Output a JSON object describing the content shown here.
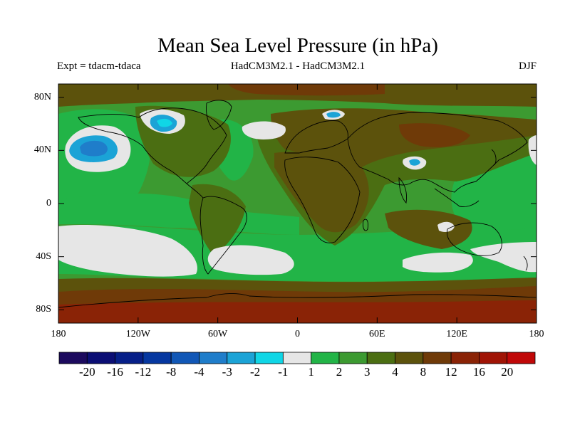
{
  "title": "Mean Sea Level Pressure (in hPa)",
  "subtitle_left": "Expt = tdacm-tdaca",
  "subtitle_center": "HadCM3M2.1 - HadCM3M2.1",
  "subtitle_right": "DJF",
  "map_data": {
    "type": "filled-contour-map",
    "projection": "equirectangular",
    "lon_range": [
      -180,
      180
    ],
    "lat_range": [
      -90,
      90
    ],
    "x_ticks": [
      {
        "lon": -180,
        "label": "180"
      },
      {
        "lon": -120,
        "label": "120W"
      },
      {
        "lon": -60,
        "label": "60W"
      },
      {
        "lon": 0,
        "label": "0"
      },
      {
        "lon": 60,
        "label": "60E"
      },
      {
        "lon": 120,
        "label": "120E"
      },
      {
        "lon": 180,
        "label": "180"
      }
    ],
    "y_ticks": [
      {
        "lat": 80,
        "label": "80N"
      },
      {
        "lat": 40,
        "label": "40N"
      },
      {
        "lat": 0,
        "label": "0"
      },
      {
        "lat": -40,
        "label": "40S"
      },
      {
        "lat": -80,
        "label": "80S"
      }
    ],
    "colorbar": {
      "colors": [
        "#1c0a5e",
        "#0b0e74",
        "#061f88",
        "#0537a0",
        "#1157b6",
        "#1f7dca",
        "#1ba3d6",
        "#10d6e6",
        "#e6e6e6",
        "#22b447",
        "#3c9a31",
        "#4b6e12",
        "#5c520c",
        "#6f3a08",
        "#8a2306",
        "#a01405",
        "#c00808"
      ],
      "labels": [
        {
          "index": 1,
          "text": "-20"
        },
        {
          "index": 2,
          "text": "-16"
        },
        {
          "index": 3,
          "text": "-12"
        },
        {
          "index": 4,
          "text": "-8"
        },
        {
          "index": 5,
          "text": "-4"
        },
        {
          "index": 6,
          "text": "-3"
        },
        {
          "index": 7,
          "text": "-2"
        },
        {
          "index": 8,
          "text": "-1"
        },
        {
          "index": 9,
          "text": "1"
        },
        {
          "index": 10,
          "text": "2"
        },
        {
          "index": 11,
          "text": "3"
        },
        {
          "index": 12,
          "text": "4"
        },
        {
          "index": 13,
          "text": "8"
        },
        {
          "index": 14,
          "text": "12"
        },
        {
          "index": 15,
          "text": "16"
        },
        {
          "index": 16,
          "text": "20"
        }
      ]
    }
  }
}
